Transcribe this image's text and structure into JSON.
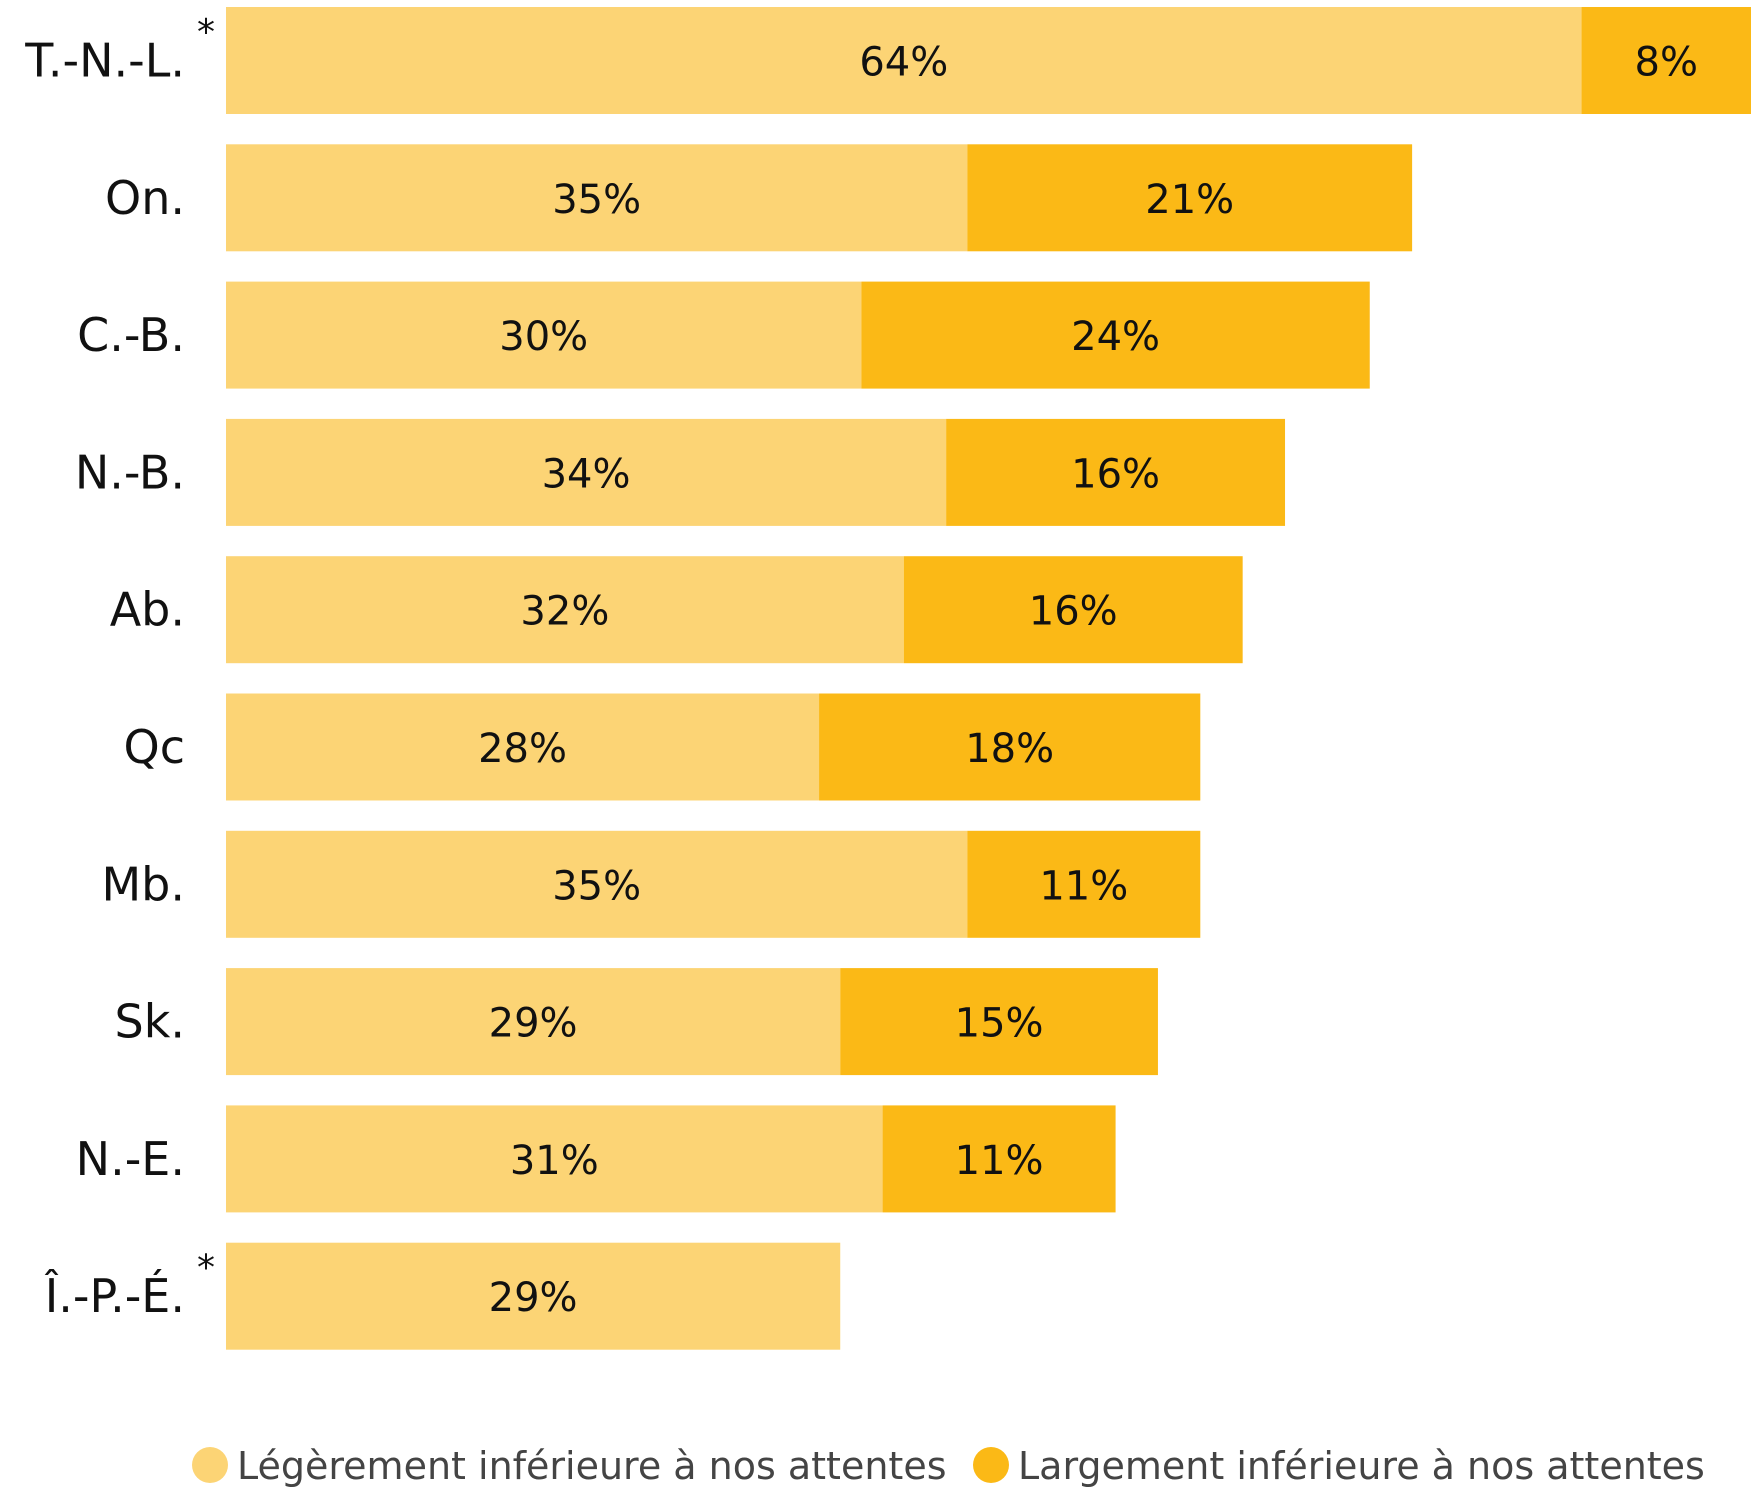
{
  "colors": {
    "light": "#FCD475",
    "dark": "#FBB916"
  },
  "chart_data": {
    "type": "bar",
    "orientation": "horizontal",
    "stacked": true,
    "categories": [
      "T.-N.-L.",
      "On.",
      "C.-B.",
      "N.-B.",
      "Ab.",
      "Qc",
      "Mb.",
      "Sk.",
      "N.-E.",
      "Î.-P.-É."
    ],
    "flagged": [
      "T.-N.-L.",
      "Î.-P.-É."
    ],
    "flag_symbol": "*",
    "series": [
      {
        "name": "Légèrement inférieure à nos attentes",
        "values": [
          64,
          35,
          30,
          34,
          32,
          28,
          35,
          29,
          31,
          29
        ],
        "labels": [
          "64%",
          "35%",
          "30%",
          "34%",
          "32%",
          "28%",
          "35%",
          "29%",
          "31%",
          "29%"
        ],
        "color": "#FCD475"
      },
      {
        "name": "Largement inférieure à nos attentes",
        "values": [
          8,
          21,
          24,
          16,
          16,
          18,
          11,
          15,
          11,
          null
        ],
        "labels": [
          "8%",
          "21%",
          "24%",
          "16%",
          "16%",
          "18%",
          "11%",
          "15%",
          "11%",
          ""
        ],
        "color": "#FBB916"
      }
    ],
    "xlim": [
      0,
      72
    ],
    "grid": false,
    "legend_position": "bottom"
  }
}
